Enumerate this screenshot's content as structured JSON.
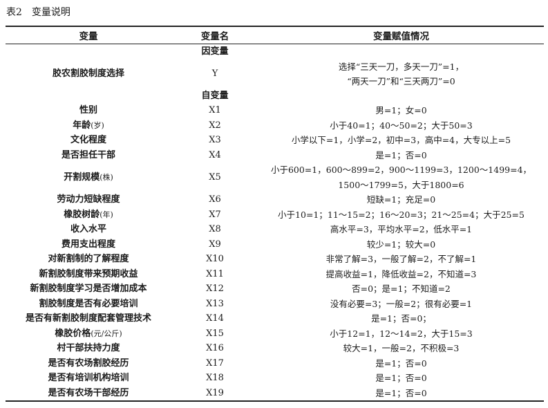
{
  "caption": {
    "label": "表2",
    "title": "变量说明"
  },
  "headers": [
    "变量",
    "变量名",
    "变量赋值情况"
  ],
  "sections": {
    "dependent": "因变量",
    "independent": "自变量"
  },
  "dependent_row": {
    "name": "胶农割胶制度选择",
    "code": "Y",
    "value_line1": "选择“三天一刀，多天一刀”=1，",
    "value_line2": "“两天一刀”和“三天两刀”=0"
  },
  "rows": [
    {
      "name": "性别",
      "unit": "",
      "code": "X1",
      "value": "男=1；女=0"
    },
    {
      "name": "年龄",
      "unit": "(岁)",
      "code": "X2",
      "value": "小于40=1；40～50=2；大于50=3"
    },
    {
      "name": "文化程度",
      "unit": "",
      "code": "X3",
      "value": "小学以下=1，小学=2，初中=3，高中=4，大专以上=5"
    },
    {
      "name": "是否担任干部",
      "unit": "",
      "code": "X4",
      "value": "是=1；否=0"
    },
    {
      "name": "开割规模",
      "unit": "(株)",
      "code": "X5",
      "value": "小于600=1，600～899=2，900～1199=3，1200～1499=4，",
      "value2": "1500～1799=5，大于1800=6"
    },
    {
      "name": "劳动力短缺程度",
      "unit": "",
      "code": "X6",
      "value": "短缺=1；充足=0"
    },
    {
      "name": "橡胶树龄",
      "unit": "(年)",
      "code": "X7",
      "value": "小于10=1；11～15=2；16～20=3；21～25=4；大于25=5"
    },
    {
      "name": "收入水平",
      "unit": "",
      "code": "X8",
      "value": "高水平=3，平均水平=2，低水平=1"
    },
    {
      "name": "费用支出程度",
      "unit": "",
      "code": "X9",
      "value": "较少=1；较大=0"
    },
    {
      "name": "对新割制的了解程度",
      "unit": "",
      "code": "X10",
      "value": "非常了解=3，一般了解=2，不了解=1"
    },
    {
      "name": "新割胶制度带来预期收益",
      "unit": "",
      "code": "X11",
      "value": "提高收益=1，降低收益=2，不知道=3"
    },
    {
      "name": "新割胶制度学习是否增加成本",
      "unit": "",
      "code": "X12",
      "value": "否=0；是=1；不知道=2"
    },
    {
      "name": "割胶制度是否有必要培训",
      "unit": "",
      "code": "X13",
      "value": "没有必要=3；一般=2；很有必要=1"
    },
    {
      "name": "是否有新割胶制度配套管理技术",
      "unit": "",
      "code": "X14",
      "value": "是=1；否=0；"
    },
    {
      "name": "橡胶价格",
      "unit": "(元/公斤)",
      "code": "X15",
      "value": "小于12=1，12～14=2，大于15=3"
    },
    {
      "name": "村干部扶持力度",
      "unit": "",
      "code": "X16",
      "value": "较大=1，一般=2，不积极=3"
    },
    {
      "name": "是否有农场割胶经历",
      "unit": "",
      "code": "X17",
      "value": "是=1；否=0"
    },
    {
      "name": "是否有培训机构培训",
      "unit": "",
      "code": "X18",
      "value": "是=1；否=0"
    },
    {
      "name": "是否有农场干部经历",
      "unit": "",
      "code": "X19",
      "value": "是=1；否=0"
    }
  ]
}
